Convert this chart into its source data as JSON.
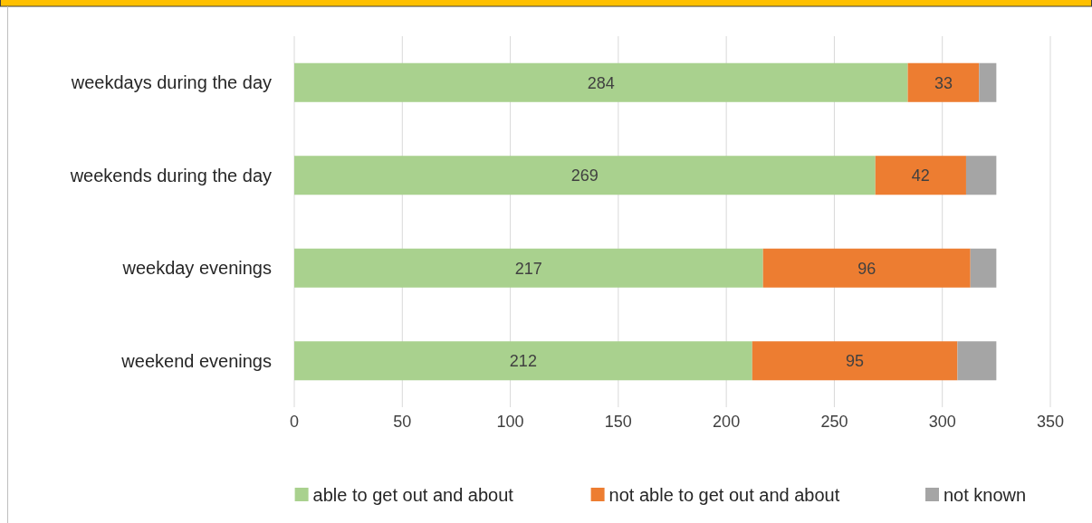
{
  "chart_data": {
    "type": "bar",
    "orientation": "horizontal",
    "stacked": true,
    "categories": [
      "weekdays during the day",
      "weekends during the day",
      "weekday evenings",
      "weekend evenings"
    ],
    "series": [
      {
        "name": "able to get out and about",
        "color": "#a9d18e",
        "values": [
          284,
          269,
          217,
          212
        ],
        "value_labels": [
          "284",
          "269",
          "217",
          "212"
        ]
      },
      {
        "name": "not able to get out and about",
        "color": "#ed7d31",
        "values": [
          33,
          42,
          96,
          95
        ],
        "value_labels": [
          "33",
          "42",
          "96",
          "95"
        ]
      },
      {
        "name": "not known",
        "color": "#a5a5a5",
        "values": [
          8,
          14,
          12,
          18
        ]
      }
    ],
    "xlim": [
      0,
      350
    ],
    "xticks": [
      0,
      50,
      100,
      150,
      200,
      250,
      300,
      350
    ],
    "grid": "x",
    "legend": "bottom"
  }
}
